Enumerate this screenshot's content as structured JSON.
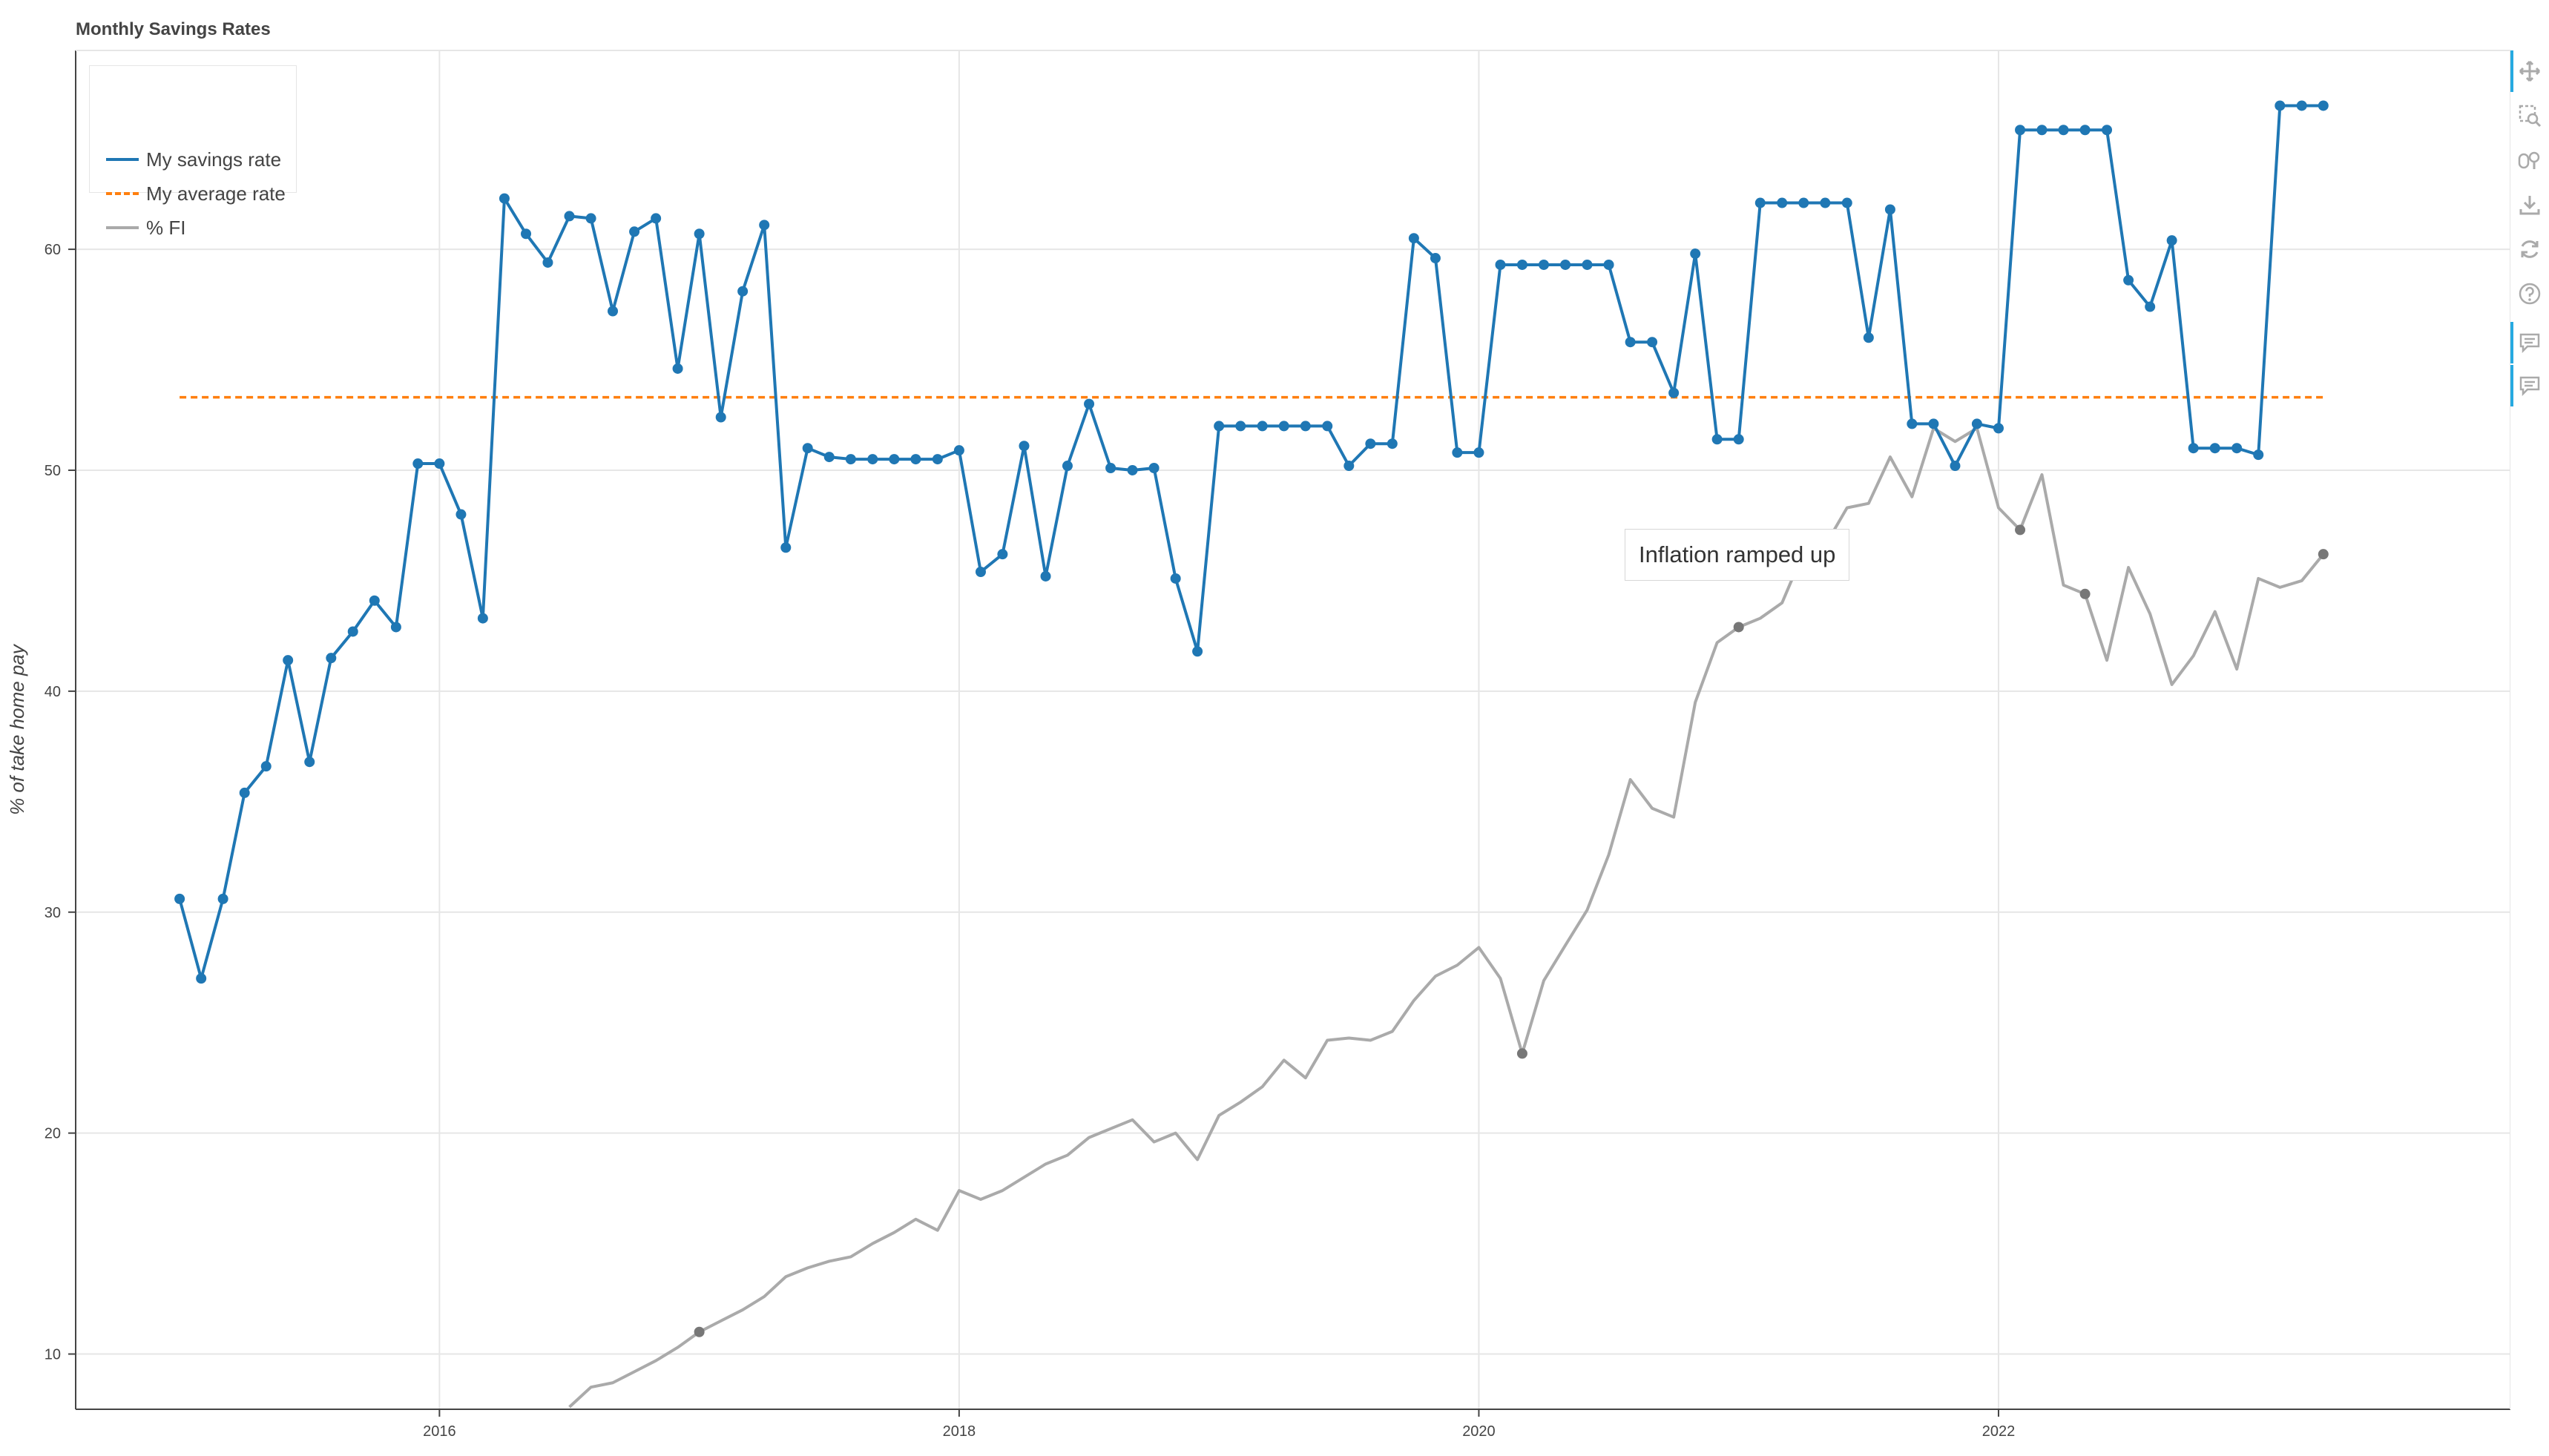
{
  "title": "Monthly Savings Rates",
  "annotation": "Inflation ramped up",
  "legend": [
    {
      "label": "My savings rate",
      "color": "#1f77b4",
      "dash": "solid"
    },
    {
      "label": "My average rate",
      "color": "#ff7f0e",
      "dash": "dashed"
    },
    {
      "label": "% FI",
      "color": "#aaaaaa",
      "dash": "solid"
    }
  ],
  "toolbar": [
    "pan-icon",
    "box-zoom-icon",
    "wheel-zoom-icon",
    "save-icon",
    "reset-icon",
    "help-icon",
    "hover-icon",
    "hover-icon"
  ],
  "chart_data": {
    "type": "line",
    "title": "Monthly Savings Rates",
    "xlabel": "",
    "ylabel": "% of take home pay",
    "x_range": [
      2014.6,
      2023.97
    ],
    "y_range": [
      7.5,
      69
    ],
    "x_ticks": [
      2016,
      2018,
      2020,
      2022
    ],
    "y_ticks": [
      10,
      20,
      30,
      40,
      50,
      60
    ],
    "grid": true,
    "legend_position": "top-left",
    "series": [
      {
        "name": "My savings rate",
        "color": "#1f77b4",
        "markers": true,
        "x": [
          2015.0,
          2015.083,
          2015.167,
          2015.25,
          2015.333,
          2015.417,
          2015.5,
          2015.583,
          2015.667,
          2015.75,
          2015.833,
          2015.917,
          2016.0,
          2016.083,
          2016.167,
          2016.25,
          2016.333,
          2016.417,
          2016.5,
          2016.583,
          2016.667,
          2016.75,
          2016.833,
          2016.917,
          2017.0,
          2017.083,
          2017.167,
          2017.25,
          2017.333,
          2017.417,
          2017.5,
          2017.583,
          2017.667,
          2017.75,
          2017.833,
          2017.917,
          2018.0,
          2018.083,
          2018.167,
          2018.25,
          2018.333,
          2018.417,
          2018.5,
          2018.583,
          2018.667,
          2018.75,
          2018.833,
          2018.917,
          2019.0,
          2019.083,
          2019.167,
          2019.25,
          2019.333,
          2019.417,
          2019.5,
          2019.583,
          2019.667,
          2019.75,
          2019.833,
          2019.917,
          2020.0,
          2020.083,
          2020.167,
          2020.25,
          2020.333,
          2020.417,
          2020.5,
          2020.583,
          2020.667,
          2020.75,
          2020.833,
          2020.917,
          2021.0,
          2021.083,
          2021.167,
          2021.25,
          2021.333,
          2021.417,
          2021.5,
          2021.583,
          2021.667,
          2021.75,
          2021.833,
          2021.917,
          2022.0,
          2022.083,
          2022.167,
          2022.25,
          2022.333,
          2022.417,
          2022.5,
          2022.583,
          2022.667,
          2022.75,
          2022.833,
          2022.917,
          2023.0,
          2023.083,
          2023.167,
          2023.25
        ],
        "values": [
          30.6,
          27.0,
          30.6,
          35.4,
          36.6,
          41.4,
          36.8,
          41.5,
          42.7,
          44.1,
          42.9,
          50.3,
          50.3,
          48.0,
          43.3,
          62.3,
          60.7,
          59.4,
          61.5,
          61.4,
          57.2,
          60.8,
          61.4,
          54.6,
          60.7,
          52.4,
          58.1,
          61.1,
          46.5,
          51.0,
          50.6,
          50.5,
          50.5,
          50.5,
          50.5,
          50.5,
          50.9,
          45.4,
          46.2,
          51.1,
          45.2,
          50.2,
          53.0,
          50.1,
          50.0,
          50.1,
          45.1,
          41.8,
          52.0,
          52.0,
          52.0,
          52.0,
          52.0,
          52.0,
          50.2,
          51.2,
          51.2,
          60.5,
          59.6,
          50.8,
          50.8,
          59.3,
          59.3,
          59.3,
          59.3,
          59.3,
          59.3,
          55.8,
          55.8,
          53.5,
          59.8,
          51.4,
          51.4,
          62.1,
          62.1,
          62.1,
          62.1,
          62.1,
          56.0,
          61.8,
          52.1,
          52.1,
          50.2,
          52.1,
          51.9,
          65.4,
          65.4,
          65.4,
          65.4,
          65.4,
          58.6,
          57.4,
          60.4,
          51.0,
          51.0,
          51.0,
          50.7,
          66.5,
          66.5,
          66.5
        ]
      },
      {
        "name": "My average rate",
        "color": "#ff7f0e",
        "dashed": true,
        "x": [
          2015.0,
          2023.25
        ],
        "values": [
          53.3,
          53.3
        ]
      },
      {
        "name": "% FI",
        "color": "#aaaaaa",
        "x": [
          2016.5,
          2016.583,
          2016.667,
          2016.75,
          2016.833,
          2016.917,
          2017.0,
          2017.083,
          2017.167,
          2017.25,
          2017.333,
          2017.417,
          2017.5,
          2017.583,
          2017.667,
          2017.75,
          2017.833,
          2017.917,
          2018.0,
          2018.083,
          2018.167,
          2018.25,
          2018.333,
          2018.417,
          2018.5,
          2018.583,
          2018.667,
          2018.75,
          2018.833,
          2018.917,
          2019.0,
          2019.083,
          2019.167,
          2019.25,
          2019.333,
          2019.417,
          2019.5,
          2019.583,
          2019.667,
          2019.75,
          2019.833,
          2019.917,
          2020.0,
          2020.083,
          2020.167,
          2020.25,
          2020.333,
          2020.417,
          2020.5,
          2020.583,
          2020.667,
          2020.75,
          2020.833,
          2020.917,
          2021.0,
          2021.083,
          2021.167,
          2021.25,
          2021.333,
          2021.417,
          2021.5,
          2021.583,
          2021.667,
          2021.75,
          2021.833,
          2021.917,
          2022.0,
          2022.083,
          2022.167,
          2022.25,
          2022.333,
          2022.417,
          2022.5,
          2022.583,
          2022.667,
          2022.75,
          2022.833,
          2022.917,
          2023.0,
          2023.083,
          2023.167,
          2023.25
        ],
        "values": [
          7.6,
          8.5,
          8.7,
          9.2,
          9.7,
          10.3,
          11.0,
          11.5,
          12.0,
          12.6,
          13.5,
          13.9,
          14.2,
          14.4,
          15.0,
          15.5,
          16.1,
          15.6,
          17.4,
          17.0,
          17.4,
          18.0,
          18.6,
          19.0,
          19.8,
          20.2,
          20.6,
          19.6,
          20.0,
          18.8,
          20.8,
          21.4,
          22.1,
          23.3,
          22.5,
          24.2,
          24.3,
          24.2,
          24.6,
          26.0,
          27.1,
          27.6,
          28.4,
          27.0,
          23.6,
          26.9,
          28.5,
          30.1,
          32.6,
          36.0,
          34.7,
          34.3,
          39.5,
          42.2,
          42.9,
          43.3,
          44.0,
          46.3,
          46.6,
          48.3,
          48.5,
          50.6,
          48.8,
          51.9,
          51.3,
          51.9,
          48.3,
          47.3,
          49.8,
          44.8,
          44.4,
          41.4,
          45.6,
          43.5,
          40.3,
          41.6,
          43.6,
          41.0,
          45.1,
          44.7,
          45.0,
          46.2
        ],
        "marked_points": [
          {
            "x": 2017.0,
            "y": 11.0
          },
          {
            "x": 2020.167,
            "y": 23.6
          },
          {
            "x": 2021.0,
            "y": 42.9
          },
          {
            "x": 2021.25,
            "y": 46.3
          },
          {
            "x": 2022.083,
            "y": 47.3
          },
          {
            "x": 2022.333,
            "y": 44.4
          },
          {
            "x": 2023.25,
            "y": 46.2
          }
        ]
      }
    ]
  }
}
